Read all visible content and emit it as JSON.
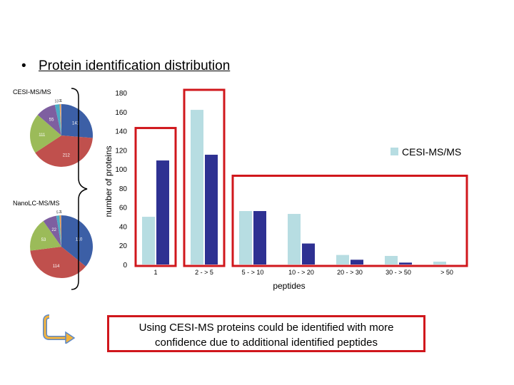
{
  "heading": {
    "bullet": "•",
    "text": "Protein identification distribution"
  },
  "pies": [
    {
      "label": "CESI-MS/MS",
      "values": [
        141,
        212,
        111,
        55,
        13,
        3,
        1,
        1
      ],
      "value_labels": [
        "141",
        "212",
        "111",
        "55",
        "13",
        "3",
        "",
        "1"
      ],
      "colors": [
        "#3c5fa6",
        "#c0504d",
        "#9bbb59",
        "#7e5fa0",
        "#4bacc6",
        "#f79646",
        "#cfcfcf",
        "#a0a0a0"
      ]
    },
    {
      "label": "NanoLC-MS/MS",
      "values": [
        110,
        114,
        53,
        22,
        5,
        2,
        1
      ],
      "value_labels": [
        "110",
        "114",
        "53",
        "22",
        "5",
        "2",
        "1"
      ],
      "colors": [
        "#3c5fa6",
        "#c0504d",
        "#9bbb59",
        "#7e5fa0",
        "#4bacc6",
        "#f79646",
        "#a0a0a0"
      ]
    }
  ],
  "chart_data": {
    "type": "bar",
    "categories": [
      "1",
      "2 - > 5",
      "5 - > 10",
      "10 - > 20",
      "20 - > 30",
      "30 - > 50",
      "> 50"
    ],
    "series": [
      {
        "name": "CESI-MS/MS",
        "values": [
          50,
          162,
          56,
          53,
          10,
          9,
          3
        ],
        "color": "#b7dde2"
      },
      {
        "name": "",
        "values": [
          109,
          115,
          56,
          22,
          5,
          2,
          0
        ],
        "color": "#2e3192"
      }
    ],
    "xlabel": "peptides",
    "ylabel": "number of proteins",
    "ylim": [
      0,
      180
    ],
    "yticks": [
      "0",
      "20",
      "40",
      "60",
      "80",
      "100",
      "120",
      "140",
      "160",
      "180"
    ],
    "grid": false,
    "legend_position": "right",
    "highlight_color": "#d0171c"
  },
  "callout": {
    "line1": "Using CESI-MS proteins could be identified with more",
    "line2": "confidence due to additional identified peptides"
  }
}
